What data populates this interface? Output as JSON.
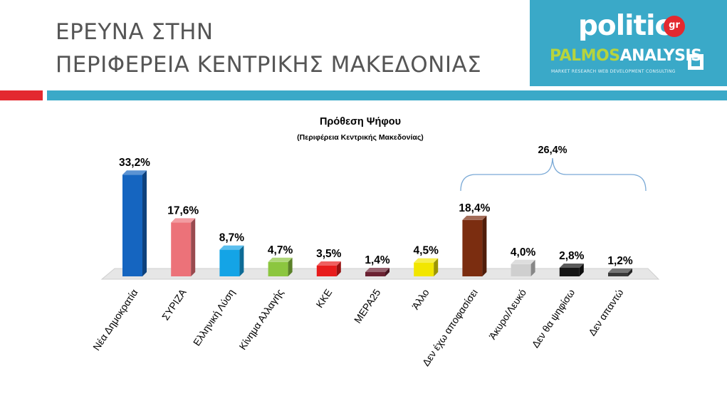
{
  "header": {
    "title_line1": "ΕΡΕΥΝΑ ΣΤΗΝ",
    "title_line2": "ΠΕΡΙΦΕΡΕΙΑ ΚΕΝΤΡΙΚΗΣ ΜΑΚΕΔΟΝΙΑΣ"
  },
  "logos": {
    "politic_text": "politic",
    "politic_suffix": "gr",
    "palmos_part1": "PALMOS",
    "palmos_part2": "ANALYSIS",
    "palmos_tagline": "MARKET RESEARCH   WEB DEVELOPMENT   CONSULTING"
  },
  "colors": {
    "accent_teal": "#3aa9c8",
    "accent_red": "#e3292f"
  },
  "chart_data": {
    "type": "bar",
    "title": "Πρόθεση Ψήφου",
    "subtitle": "(Περιφέρεια Κεντρικής Μακεδονίας)",
    "categories": [
      "Νέα Δημοκρατία",
      "ΣΥΡΙΖΑ",
      "Ελληνική Λύση",
      "Κίνημα Αλλαγής",
      "ΚΚΕ",
      "ΜΕΡΑ25",
      "Άλλο",
      "Δεν έχω αποφασίσει",
      "Άκυρο/Λευκό",
      "Δεν θα ψηφίσω",
      "Δεν απαντώ"
    ],
    "values": [
      33.2,
      17.6,
      8.7,
      4.7,
      3.5,
      1.4,
      4.5,
      18.4,
      4.0,
      2.8,
      1.2
    ],
    "data_labels": [
      "33,2%",
      "17,6%",
      "8,7%",
      "4,7%",
      "3,5%",
      "1,4%",
      "4,5%",
      "18,4%",
      "4,0%",
      "2,8%",
      "1,2%"
    ],
    "colors": [
      "#1565c0",
      "#ec7279",
      "#14a4e6",
      "#8cc63f",
      "#e81c1c",
      "#6b2232",
      "#f2e600",
      "#7b2d10",
      "#cfcfcf",
      "#151515",
      "#3a3a3a"
    ],
    "ylim": [
      0,
      34
    ],
    "grid": false,
    "annotation": {
      "label": "26,4%",
      "span_categories": [
        "Δεν έχω αποφασίσει",
        "Άκυρο/Λευκό",
        "Δεν θα ψηφίσω",
        "Δεν απαντώ"
      ]
    }
  }
}
